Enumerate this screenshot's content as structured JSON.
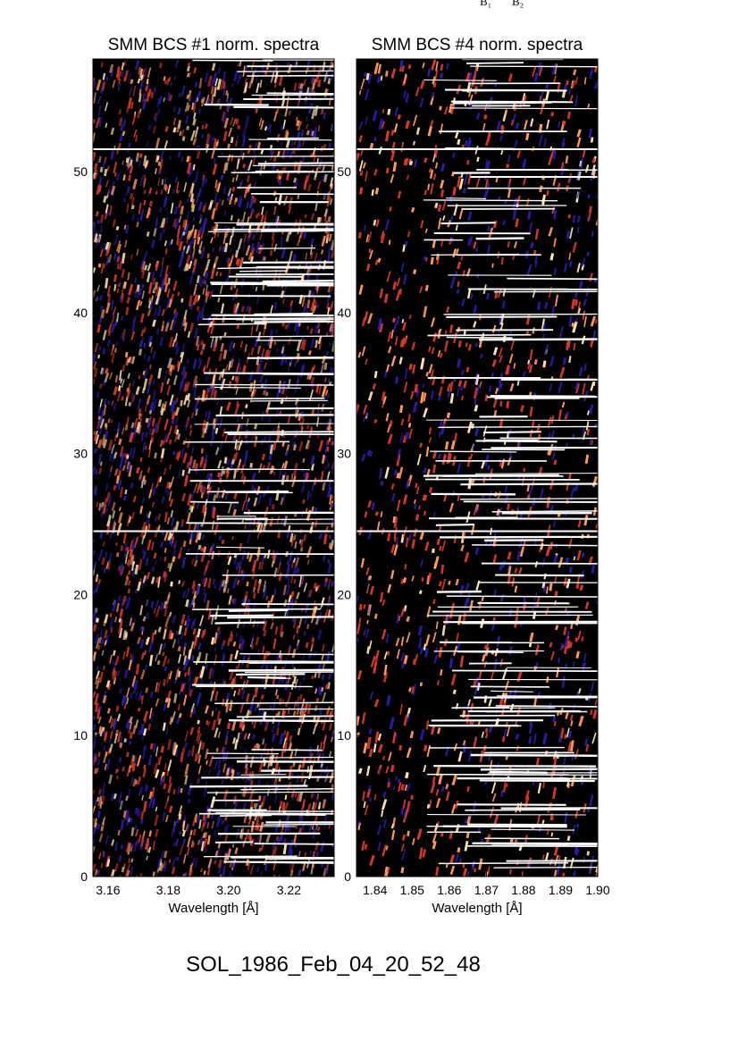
{
  "figure_id": "SOL_1986_Feb_04_20_52_48",
  "top_labels": [
    "B₁",
    "B₂"
  ],
  "colors": {
    "background": "#000000",
    "low": "#2a1d9c",
    "mid": "#d23a2a",
    "high": "#ff9a5a",
    "peak": "#ffe3b0",
    "overlay": "#ffffff"
  },
  "chart_data": [
    {
      "type": "heatmap",
      "title": "SMM BCS #1 norm. spectra",
      "xlabel": "Wavelength [Å]",
      "ylabel": "",
      "xlim": [
        3.155,
        3.235
      ],
      "ylim": [
        0,
        58
      ],
      "xticks": [
        3.16,
        3.18,
        3.2,
        3.22
      ],
      "xtick_labels": [
        "3.16",
        "3.18",
        "3.20",
        "3.22"
      ],
      "yticks": [
        0,
        10,
        20,
        30,
        40,
        50
      ],
      "ytick_labels": [
        "0",
        "10",
        "20",
        "30",
        "40",
        "50"
      ],
      "colormap": "black-blue-red-orange",
      "overlay": "white horizontal spectral line profiles per spectrum, spanning roughly 3.195–3.235 Å"
    },
    {
      "type": "heatmap",
      "title": "SMM BCS #4 norm. spectra",
      "xlabel": "Wavelength [Å]",
      "ylabel": "",
      "xlim": [
        1.835,
        1.9
      ],
      "ylim": [
        0,
        58
      ],
      "xticks": [
        1.84,
        1.85,
        1.86,
        1.87,
        1.88,
        1.89,
        1.9
      ],
      "xtick_labels": [
        "1.84",
        "1.85",
        "1.86",
        "1.87",
        "1.88",
        "1.89",
        "1.90"
      ],
      "yticks": [
        0,
        10,
        20,
        30,
        40,
        50
      ],
      "ytick_labels": [
        "0",
        "10",
        "20",
        "30",
        "40",
        "50"
      ],
      "colormap": "black-blue-red-orange",
      "overlay": "white horizontal spectral line profiles per spectrum, spanning roughly 1.865–1.90 Å"
    }
  ]
}
